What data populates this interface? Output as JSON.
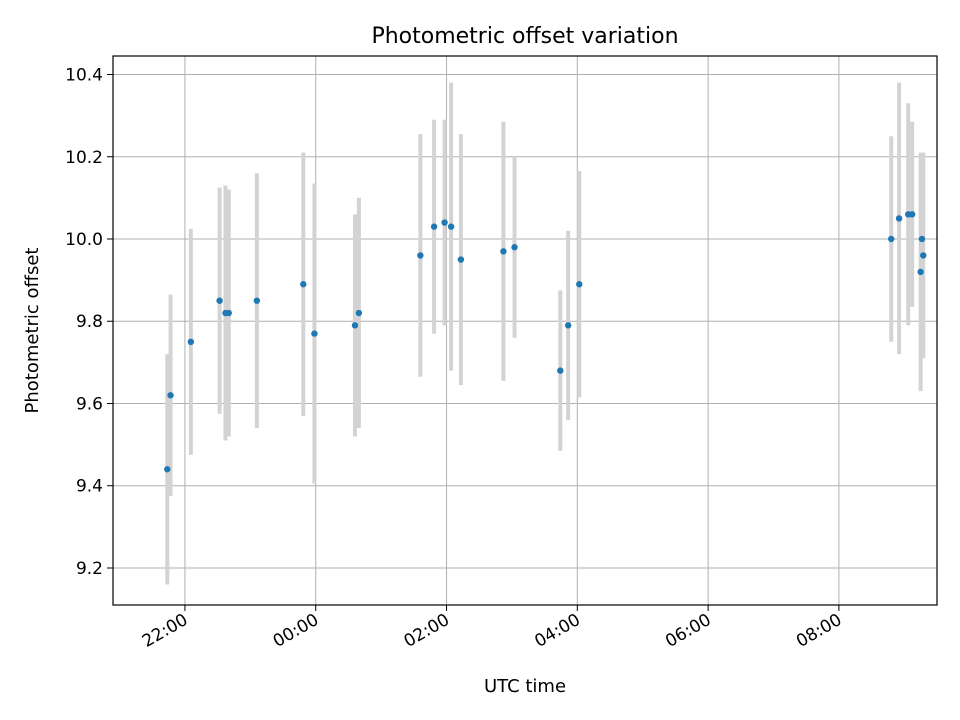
{
  "chart_data": {
    "type": "scatter",
    "title": "Photometric offset variation",
    "xlabel": "UTC time",
    "ylabel": "Photometric offset",
    "x_unit": "hours (UTC, continuing past midnight; 24 = 00:00 next day)",
    "xlim": [
      20.9,
      33.5
    ],
    "ylim": [
      9.11,
      10.445
    ],
    "grid": true,
    "x_ticks": [
      {
        "value": 22,
        "label": "22:00"
      },
      {
        "value": 24,
        "label": "00:00"
      },
      {
        "value": 26,
        "label": "02:00"
      },
      {
        "value": 28,
        "label": "04:00"
      },
      {
        "value": 30,
        "label": "06:00"
      },
      {
        "value": 32,
        "label": "08:00"
      }
    ],
    "y_ticks": [
      {
        "value": 9.2,
        "label": "9.2"
      },
      {
        "value": 9.4,
        "label": "9.4"
      },
      {
        "value": 9.6,
        "label": "9.6"
      },
      {
        "value": 9.8,
        "label": "9.8"
      },
      {
        "value": 10.0,
        "label": "10.0"
      },
      {
        "value": 10.2,
        "label": "10.2"
      },
      {
        "value": 10.4,
        "label": "10.4"
      }
    ],
    "point_color": "#1f77b4",
    "errorbar_color": "#d3d3d3",
    "points": [
      {
        "x": 21.73,
        "y": 9.44,
        "err": 0.28
      },
      {
        "x": 21.78,
        "y": 9.62,
        "err": 0.245
      },
      {
        "x": 22.09,
        "y": 9.75,
        "err": 0.275
      },
      {
        "x": 22.53,
        "y": 9.85,
        "err": 0.275
      },
      {
        "x": 22.62,
        "y": 9.82,
        "err": 0.31
      },
      {
        "x": 22.67,
        "y": 9.82,
        "err": 0.3
      },
      {
        "x": 23.1,
        "y": 9.85,
        "err": 0.31
      },
      {
        "x": 23.81,
        "y": 9.89,
        "err": 0.32
      },
      {
        "x": 23.98,
        "y": 9.77,
        "err": 0.365
      },
      {
        "x": 24.6,
        "y": 9.79,
        "err": 0.27
      },
      {
        "x": 24.66,
        "y": 9.82,
        "err": 0.28
      },
      {
        "x": 25.6,
        "y": 9.96,
        "err": 0.295
      },
      {
        "x": 25.81,
        "y": 10.03,
        "err": 0.26
      },
      {
        "x": 25.97,
        "y": 10.04,
        "err": 0.25
      },
      {
        "x": 26.07,
        "y": 10.03,
        "err": 0.35
      },
      {
        "x": 26.22,
        "y": 9.95,
        "err": 0.305
      },
      {
        "x": 26.87,
        "y": 9.97,
        "err": 0.315
      },
      {
        "x": 27.04,
        "y": 9.98,
        "err": 0.22
      },
      {
        "x": 27.74,
        "y": 9.68,
        "err": 0.195
      },
      {
        "x": 27.86,
        "y": 9.79,
        "err": 0.23
      },
      {
        "x": 28.03,
        "y": 9.89,
        "err": 0.275
      },
      {
        "x": 32.8,
        "y": 10.0,
        "err": 0.25
      },
      {
        "x": 32.92,
        "y": 10.05,
        "err": 0.33
      },
      {
        "x": 33.06,
        "y": 10.06,
        "err": 0.27
      },
      {
        "x": 33.12,
        "y": 10.06,
        "err": 0.225
      },
      {
        "x": 33.25,
        "y": 9.92,
        "err": 0.29
      },
      {
        "x": 33.27,
        "y": 10.0,
        "err": 0.205
      },
      {
        "x": 33.29,
        "y": 9.96,
        "err": 0.25
      }
    ]
  }
}
